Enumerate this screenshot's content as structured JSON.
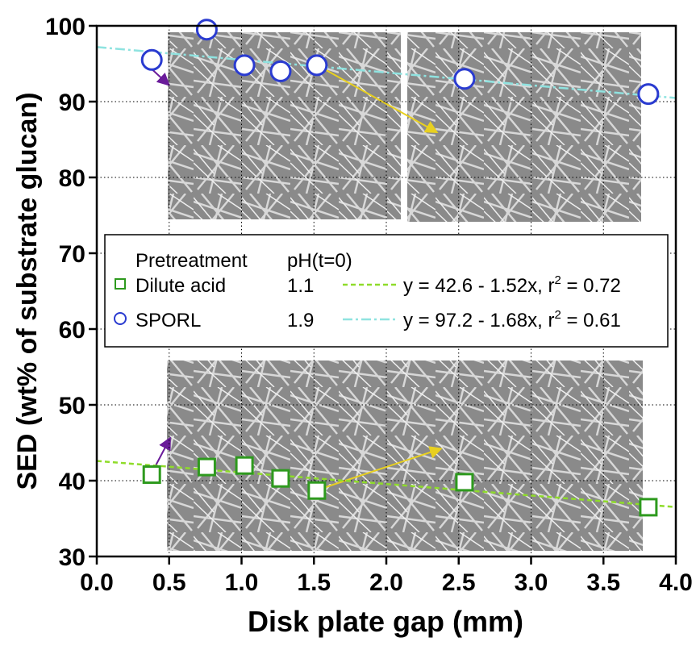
{
  "chart_data": {
    "type": "scatter",
    "xlabel": "Disk plate gap (mm)",
    "ylabel": "SED (wt% of substrate glucan)",
    "xlim": [
      0,
      4
    ],
    "ylim": [
      30,
      100
    ],
    "xticks": [
      {
        "value": 0,
        "label": "0.0"
      },
      0.5,
      {
        "value": 1,
        "label": "1.0"
      },
      1.5,
      {
        "value": 2,
        "label": "2.0"
      },
      2.5,
      {
        "value": 3,
        "label": "3.0"
      },
      3.5,
      {
        "value": 4,
        "label": "4.0"
      }
    ],
    "yticks": [
      30,
      40,
      50,
      60,
      70,
      80,
      90,
      100
    ],
    "grid": true,
    "legend_header": [
      "Pretreatment",
      "pH(t=0)"
    ],
    "series": [
      {
        "name": "Dilute acid",
        "marker": "square",
        "color": "#2e9a1e",
        "pH": 1.1,
        "x": [
          0.38,
          0.76,
          1.02,
          1.27,
          1.52,
          2.54,
          3.81
        ],
        "values": [
          40.8,
          41.8,
          42,
          40.3,
          38.7,
          39.8,
          36.5
        ],
        "fit": {
          "intercept": 42.6,
          "slope": -1.52,
          "color": "#8fdc2a",
          "dash": "dashed",
          "label": [
            "y = 42.6 - 1.52x, r",
            "2",
            " = 0.72"
          ]
        }
      },
      {
        "name": "SPORL",
        "marker": "circle",
        "color": "#2a3bd0",
        "pH": 1.9,
        "x": [
          0.38,
          0.76,
          1.02,
          1.27,
          1.52,
          2.54,
          3.81
        ],
        "values": [
          95.5,
          99.5,
          94.8,
          94,
          94.8,
          93,
          91
        ],
        "fit": {
          "intercept": 97.2,
          "slope": -1.68,
          "color": "#8fe3e0",
          "dash": "dashdot",
          "label": [
            "y = 97.2 - 1.68x, r",
            "2",
            " = 0.61"
          ]
        }
      }
    ]
  }
}
